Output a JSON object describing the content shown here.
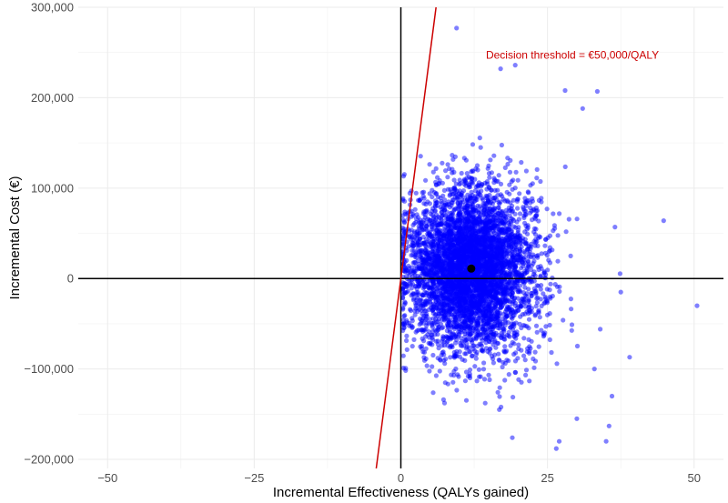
{
  "chart_data": {
    "type": "scatter",
    "title": "",
    "xlabel": "Incremental Effectiveness (QALYs gained)",
    "ylabel": "Incremental Cost (€)",
    "xlim": [
      -55,
      55
    ],
    "ylim": [
      -210000,
      300000
    ],
    "x_ticks": [
      -50,
      -25,
      0,
      25,
      50
    ],
    "x_tick_labels": [
      "−50",
      "−25",
      "0",
      "25",
      "50"
    ],
    "y_ticks": [
      -200000,
      -100000,
      0,
      100000,
      200000,
      300000
    ],
    "y_tick_labels": [
      "−200,000",
      "−100,000",
      "0",
      "100,000",
      "200,000",
      "300,000"
    ],
    "grid": true,
    "point_color": "#0000ff",
    "mean_point_color": "#000000",
    "threshold_color": "#cc0000",
    "threshold": {
      "label": "Decision threshold = €50,000/QALY",
      "slope_per_qaly": 50000,
      "label_anchor": [
        14.5,
        243000
      ]
    },
    "mean_point": {
      "x": 12,
      "y": 11000
    },
    "simulation_cloud": {
      "n": 5000,
      "x_mean": 12,
      "x_sd": 5.5,
      "y_mean": 11000,
      "y_sd": 45000,
      "seed": 7
    },
    "outliers": [
      [
        9.5,
        277000
      ],
      [
        19.5,
        236000
      ],
      [
        17,
        232000
      ],
      [
        28,
        208000
      ],
      [
        33.5,
        207000
      ],
      [
        31,
        188000
      ],
      [
        44.8,
        64000
      ],
      [
        50.5,
        -30000
      ],
      [
        36.5,
        57000
      ],
      [
        37.5,
        -15000
      ],
      [
        39,
        -87000
      ],
      [
        36,
        -130000
      ],
      [
        35.5,
        -163000
      ],
      [
        35,
        -180000
      ],
      [
        30,
        -155000
      ],
      [
        27,
        -180000
      ],
      [
        26.5,
        -188000
      ],
      [
        19,
        -176000
      ],
      [
        33,
        -100000
      ],
      [
        34,
        -56000
      ]
    ]
  }
}
